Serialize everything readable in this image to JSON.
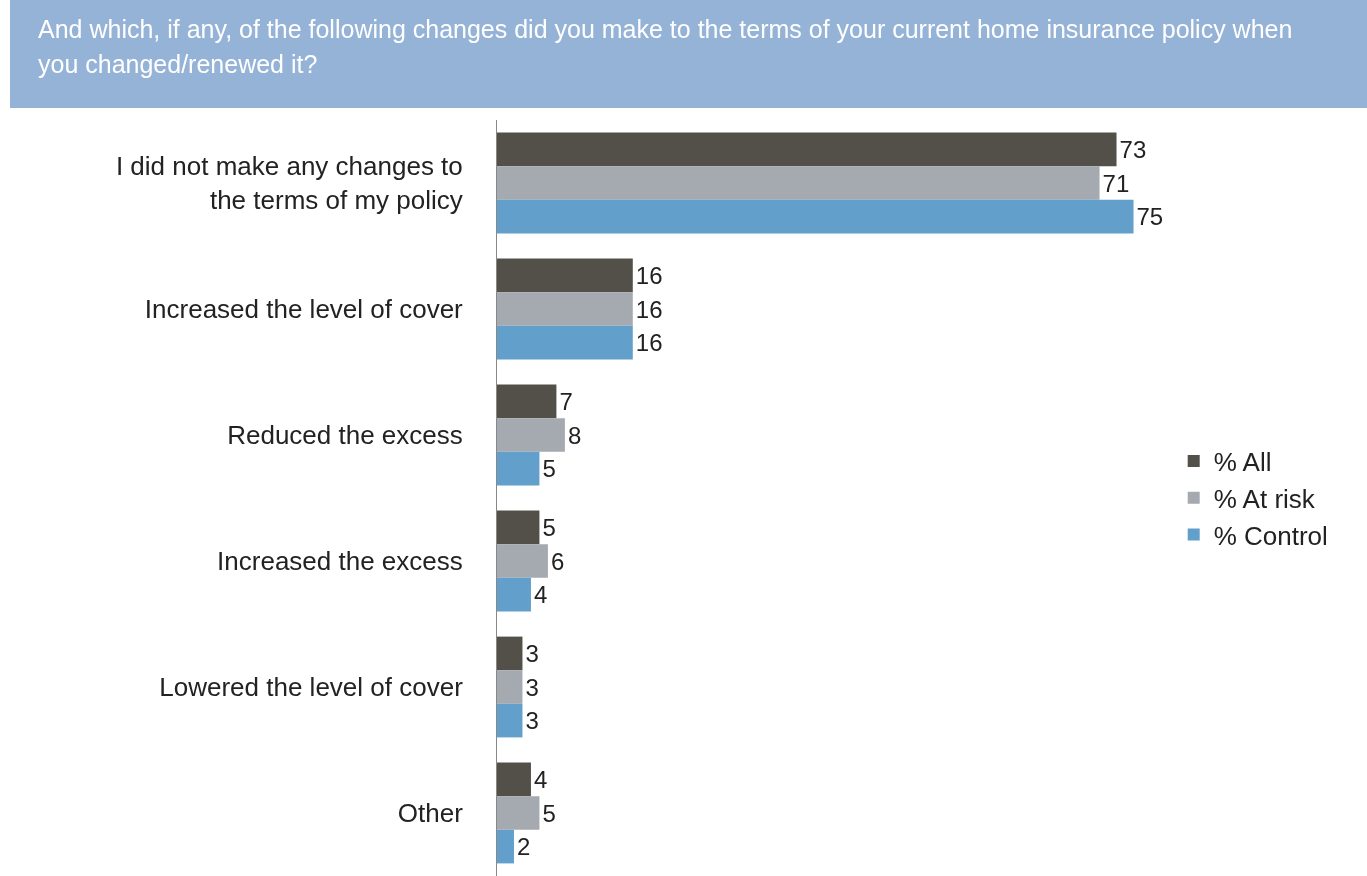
{
  "chart_data": {
    "type": "bar",
    "orientation": "horizontal",
    "title": "And which, if any, of the following changes did you make to the terms of your current home insurance policy when you changed/renewed it?",
    "categories": [
      "I did not make any changes to the terms of my policy",
      "Increased the level of cover",
      "Reduced the excess",
      "Increased the excess",
      "Lowered the level of cover",
      "Other"
    ],
    "series": [
      {
        "name": "% All",
        "color": "#525049",
        "values": [
          73,
          16,
          7,
          5,
          3,
          4
        ]
      },
      {
        "name": "% At risk",
        "color": "#a5aab0",
        "values": [
          71,
          16,
          8,
          6,
          3,
          5
        ]
      },
      {
        "name": "% Control",
        "color": "#62a0cb",
        "values": [
          75,
          16,
          5,
          4,
          3,
          2
        ]
      }
    ],
    "data_labels": true,
    "legend": "right",
    "grid": false
  }
}
